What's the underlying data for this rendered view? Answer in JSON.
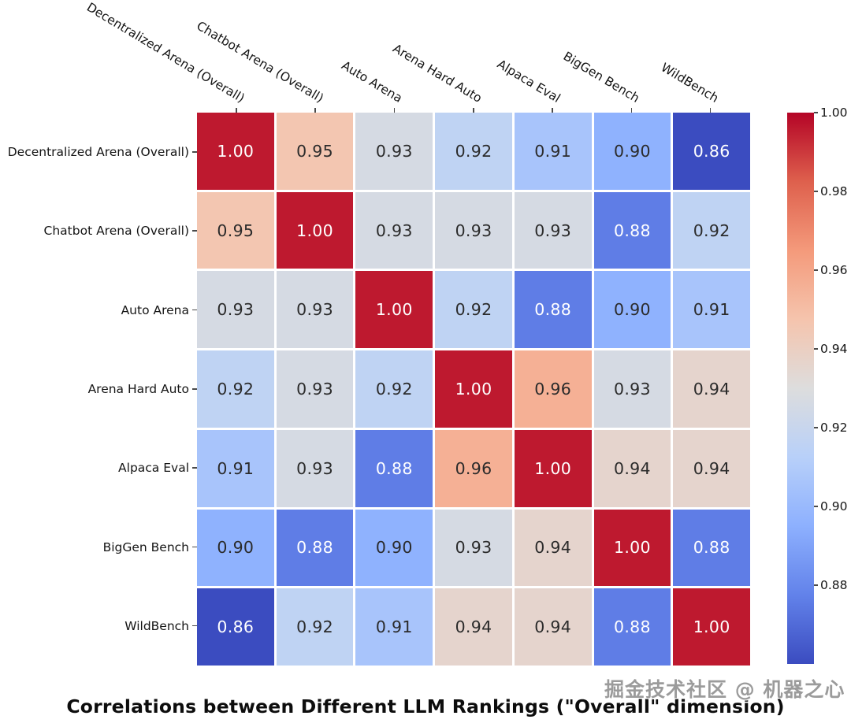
{
  "watermark": "掘金技术社区 @ 机器之心",
  "chart_data": {
    "type": "heatmap",
    "title": "Correlations between Different LLM Rankings (\"Overall\" dimension)",
    "labels": [
      "Decentralized Arena (Overall)",
      "Chatbot Arena (Overall)",
      "Auto Arena",
      "Arena Hard Auto",
      "Alpaca Eval",
      "BigGen Bench",
      "WildBench"
    ],
    "matrix": [
      [
        1.0,
        0.95,
        0.93,
        0.92,
        0.91,
        0.9,
        0.86
      ],
      [
        0.95,
        1.0,
        0.93,
        0.93,
        0.93,
        0.88,
        0.92
      ],
      [
        0.93,
        0.93,
        1.0,
        0.92,
        0.88,
        0.9,
        0.91
      ],
      [
        0.92,
        0.93,
        0.92,
        1.0,
        0.96,
        0.93,
        0.94
      ],
      [
        0.91,
        0.93,
        0.88,
        0.96,
        1.0,
        0.94,
        0.94
      ],
      [
        0.9,
        0.88,
        0.9,
        0.93,
        0.94,
        1.0,
        0.88
      ],
      [
        0.86,
        0.92,
        0.91,
        0.94,
        0.94,
        0.88,
        1.0
      ]
    ],
    "value_decimals": 2,
    "colormap": "coolwarm",
    "vmin": 0.86,
    "vmax": 1.0,
    "colorbar_ticks": [
      "1.00",
      "0.98",
      "0.96",
      "0.94",
      "0.92",
      "0.90",
      "0.88"
    ],
    "legend_position": "right",
    "grid": false,
    "colors": {
      "cool_end": "#3b4cc0",
      "warm_end": "#b40426",
      "midpoint": "#dddddd",
      "label_text": "#151515",
      "cell_text_dark": "#2b2b2b",
      "cell_text_light": "#ffffff"
    }
  }
}
